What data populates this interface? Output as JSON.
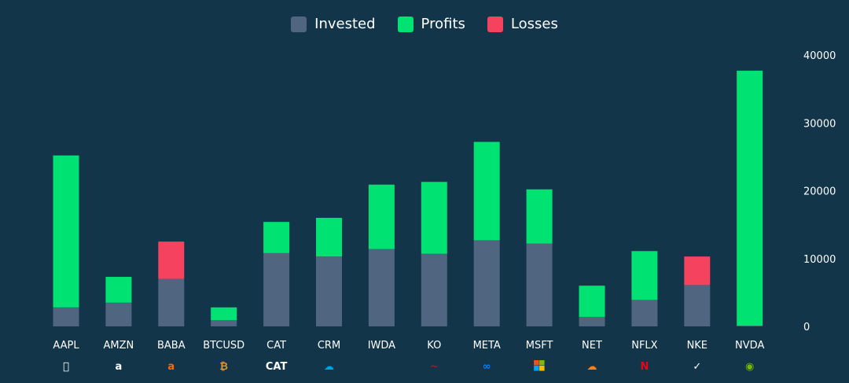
{
  "chart_data": {
    "type": "bar",
    "stacked": true,
    "categories": [
      "AAPL",
      "AMZN",
      "BABA",
      "BTCUSD",
      "CAT",
      "CRM",
      "IWDA",
      "KO",
      "META",
      "MSFT",
      "NET",
      "NFLX",
      "NKE",
      "NVDA"
    ],
    "series": [
      {
        "name": "Invested",
        "color": "#4f6580",
        "values": [
          2800,
          3500,
          7000,
          900,
          10800,
          10300,
          11400,
          10700,
          12700,
          12200,
          1400,
          3900,
          6100,
          100
        ]
      },
      {
        "name": "Profits",
        "color": "#00e272",
        "values": [
          22400,
          3800,
          0,
          1900,
          4600,
          5700,
          9500,
          10600,
          14500,
          8000,
          4600,
          7200,
          0,
          37600
        ]
      },
      {
        "name": "Losses",
        "color": "#f5425f",
        "values": [
          0,
          0,
          5500,
          0,
          0,
          0,
          0,
          0,
          0,
          0,
          0,
          0,
          4200,
          0
        ]
      }
    ],
    "yticks": [
      0,
      10000,
      20000,
      30000,
      40000
    ],
    "ylim": [
      0,
      40000
    ],
    "y_axis_side": "right",
    "grid": false,
    "legend": "top-center",
    "icons": [
      "apple-icon",
      "amazon-icon",
      "alibaba-icon",
      "bitcoin-icon",
      "caterpillar-icon",
      "salesforce-icon",
      "",
      "coca-cola-icon",
      "meta-icon",
      "microsoft-icon",
      "cloudflare-icon",
      "netflix-icon",
      "nike-icon",
      "nvidia-icon"
    ]
  }
}
